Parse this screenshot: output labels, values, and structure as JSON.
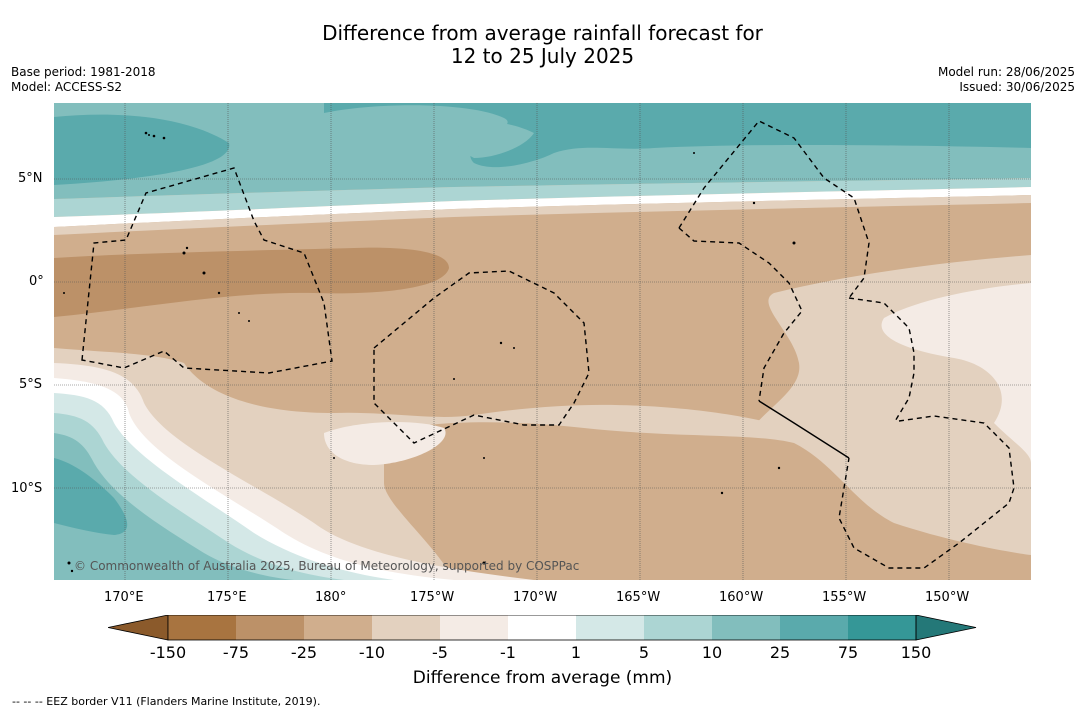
{
  "title_line1": "Difference from average rainfall forecast for",
  "title_line2": "12 to 25 July 2025",
  "left_meta": {
    "base_period": "Base period: 1981-2018",
    "model": "Model: ACCESS-S2"
  },
  "right_meta": {
    "model_run": "Model run: 28/06/2025",
    "issued": "Issued: 30/06/2025"
  },
  "copyright": "© Commonwealth of Australia 2025, Bureau of Meteorology, supported by COSPPac",
  "lat_ticks": [
    "5°N",
    "0°",
    "5°S",
    "10°S"
  ],
  "lon_ticks": [
    "170°E",
    "175°E",
    "180°",
    "175°W",
    "170°W",
    "165°W",
    "160°W",
    "155°W",
    "150°W"
  ],
  "colorbar": {
    "labels": [
      "-150",
      "-75",
      "-25",
      "-10",
      "-5",
      "-1",
      "1",
      "5",
      "10",
      "25",
      "75",
      "150"
    ],
    "colors": [
      "#8b5a2b",
      "#a87440",
      "#bc9168",
      "#d0ae8d",
      "#e3d1bf",
      "#f4ebe5",
      "#ffffff",
      "#d4e8e7",
      "#acd5d3",
      "#82bebd",
      "#5aaaac",
      "#359797",
      "#247878"
    ],
    "title": "Difference from average (mm)"
  },
  "footnote": "--  --  -- EEZ border V11 (Flanders Marine Institute, 2019)."
}
